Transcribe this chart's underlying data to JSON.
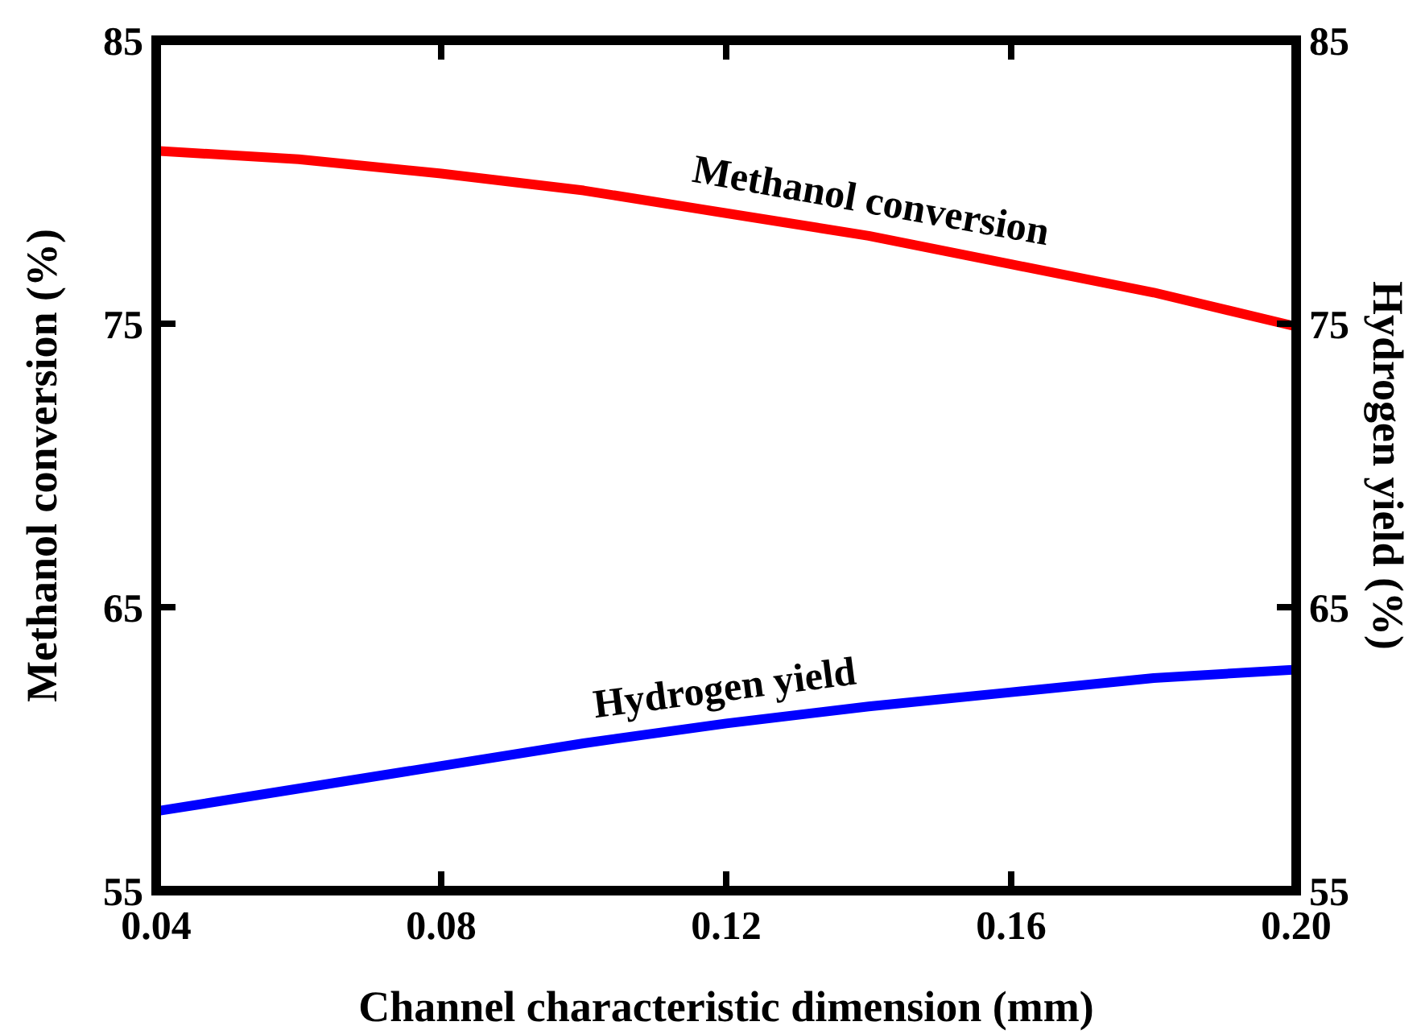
{
  "chart_data": {
    "type": "line",
    "xlabel": "Channel characteristic dimension (mm)",
    "ylabel": "Methanol conversion (%)",
    "y2label": "Hydrogen yield (%)",
    "x": [
      0.04,
      0.06,
      0.08,
      0.1,
      0.12,
      0.14,
      0.16,
      0.18,
      0.2
    ],
    "xlim": [
      0.04,
      0.2
    ],
    "xticks": [
      0.04,
      0.08,
      0.12,
      0.16,
      {
        "value": 0.2,
        "label": "0.20"
      }
    ],
    "ylim": [
      55,
      85
    ],
    "yticks": [
      55,
      65,
      75,
      85
    ],
    "y2lim": [
      55,
      85
    ],
    "y2ticks": [
      55,
      65,
      75,
      85
    ],
    "grid": false,
    "marker": "none",
    "line_style": "solid",
    "series": [
      {
        "name": "Methanol conversion",
        "color": "#ff0000",
        "values": [
          81.1,
          80.8,
          80.3,
          79.7,
          78.9,
          78.1,
          77.1,
          76.1,
          74.9
        ]
      },
      {
        "name": "Hydrogen yield",
        "color": "#0000ff",
        "values": [
          57.8,
          58.6,
          59.4,
          60.2,
          60.9,
          61.5,
          62.0,
          62.5,
          62.8
        ]
      }
    ]
  }
}
